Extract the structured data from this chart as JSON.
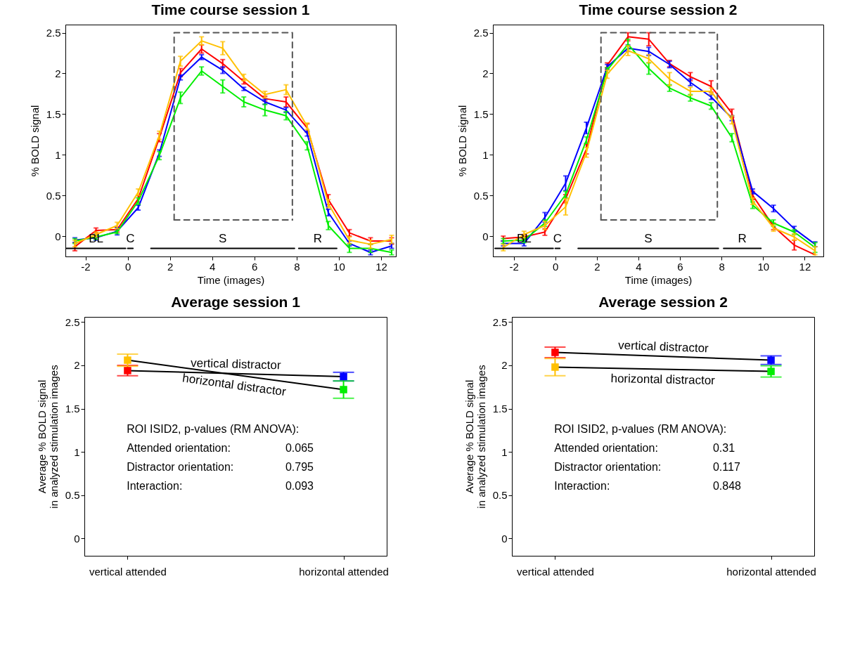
{
  "chart_data": [
    {
      "type": "line",
      "title": "Time course session 1",
      "xlabel": "Time (images)",
      "ylabel": "% BOLD signal",
      "x": [
        -2.5,
        -1.5,
        -0.5,
        0.5,
        1.5,
        2.5,
        3.5,
        4.5,
        5.5,
        6.5,
        7.5,
        8.5,
        9.5,
        10.5,
        11.5,
        12.5
      ],
      "xlim": [
        -2.95,
        12.7
      ],
      "xticks": [
        -2,
        0,
        2,
        4,
        6,
        8,
        10,
        12
      ],
      "ylim": [
        -0.25,
        2.6
      ],
      "yticks": [
        0,
        0.5,
        1,
        1.5,
        2,
        2.5
      ],
      "series": [
        {
          "color": "#ff0000",
          "values": [
            -0.13,
            0.07,
            0.08,
            0.46,
            1.21,
            2.01,
            2.3,
            2.12,
            1.9,
            1.69,
            1.65,
            1.33,
            0.45,
            0.04,
            -0.06,
            -0.06
          ],
          "errors": [
            0.05,
            0.03,
            0.03,
            0.04,
            0.05,
            0.05,
            0.05,
            0.05,
            0.03,
            0.03,
            0.06,
            0.05,
            0.06,
            0.04,
            0.04,
            0.04
          ]
        },
        {
          "color": "#0000ff",
          "values": [
            -0.05,
            -0.02,
            0.06,
            0.35,
            1.02,
            1.95,
            2.2,
            2.04,
            1.81,
            1.65,
            1.55,
            1.26,
            0.29,
            -0.09,
            -0.2,
            -0.12
          ],
          "errors": [
            0.03,
            0.03,
            0.045,
            0.03,
            0.04,
            0.03,
            0.03,
            0.04,
            0.02,
            0.03,
            0.03,
            0.03,
            0.04,
            0.03,
            0.03,
            0.03
          ]
        },
        {
          "color": "#00ee00",
          "values": [
            -0.06,
            -0.01,
            0.05,
            0.43,
            0.99,
            1.7,
            2.03,
            1.84,
            1.65,
            1.55,
            1.48,
            1.11,
            0.13,
            -0.15,
            -0.15,
            -0.2
          ],
          "errors": [
            0.03,
            0.03,
            0.02,
            0.04,
            0.05,
            0.07,
            0.05,
            0.08,
            0.06,
            0.07,
            0.05,
            0.05,
            0.05,
            0.05,
            0.05,
            0.03
          ]
        },
        {
          "color": "#ffc000",
          "values": [
            -0.09,
            0.02,
            0.13,
            0.54,
            1.24,
            2.15,
            2.4,
            2.31,
            1.95,
            1.74,
            1.8,
            1.35,
            0.4,
            -0.05,
            -0.1,
            -0.04
          ],
          "errors": [
            0.04,
            0.03,
            0.04,
            0.04,
            0.05,
            0.06,
            0.05,
            0.08,
            0.04,
            0.04,
            0.06,
            0.04,
            0.05,
            0.04,
            0.05,
            0.05
          ]
        },
        {
          "type": "line",
          "color": "#555555",
          "line_style": "dashed",
          "x": [
            2.2,
            2.2,
            7.8,
            7.8
          ],
          "values": [
            0.2,
            2.5,
            2.5,
            0.2
          ]
        },
        {
          "type": "line",
          "color": "#555555",
          "line_style": "dashed",
          "x": [
            2.2,
            7.8
          ],
          "values": [
            0.2,
            0.2
          ]
        },
        {
          "type": "line",
          "name": "BL",
          "color": "#000000",
          "x": [
            -2.9,
            -0.1
          ],
          "values": [
            -0.15,
            -0.15
          ]
        },
        {
          "type": "line",
          "name": "C",
          "color": "#000000",
          "x": [
            0,
            0.25
          ],
          "values": [
            -0.15,
            -0.15
          ]
        },
        {
          "type": "line",
          "name": "S",
          "color": "#000000",
          "x": [
            1.1,
            7.9
          ],
          "values": [
            -0.15,
            -0.15
          ]
        },
        {
          "type": "line",
          "name": "R",
          "color": "#000000",
          "x": [
            8.1,
            9.9
          ],
          "values": [
            -0.15,
            -0.15
          ]
        }
      ]
    },
    {
      "type": "line",
      "title": "Time course session 2",
      "xlabel": "Time (images)",
      "ylabel": "% BOLD signal",
      "x": [
        -2.5,
        -1.5,
        -0.5,
        0.5,
        1.5,
        2.5,
        3.5,
        4.5,
        5.5,
        6.5,
        7.5,
        8.5,
        9.5,
        10.5,
        11.5,
        12.5
      ],
      "xlim": [
        -3,
        12.9
      ],
      "xticks": [
        -2,
        0,
        2,
        4,
        6,
        8,
        10,
        12
      ],
      "ylim": [
        -0.25,
        2.6
      ],
      "yticks": [
        0,
        0.5,
        1,
        1.5,
        2,
        2.5
      ],
      "series": [
        {
          "color": "#ff0000",
          "values": [
            -0.03,
            -0.01,
            0.05,
            0.46,
            1.07,
            2.1,
            2.45,
            2.42,
            2.12,
            1.96,
            1.84,
            1.51,
            0.5,
            0.12,
            -0.11,
            -0.23
          ],
          "errors": [
            0.03,
            0.03,
            0.04,
            0.05,
            0.06,
            0.03,
            0.05,
            0.08,
            0.04,
            0.05,
            0.07,
            0.05,
            0.05,
            0.04,
            0.06,
            null
          ]
        },
        {
          "color": "#0000ff",
          "values": [
            -0.09,
            -0.09,
            0.23,
            0.65,
            1.33,
            2.08,
            2.31,
            2.27,
            2.11,
            1.89,
            1.71,
            1.45,
            0.55,
            0.34,
            0.09,
            -0.1
          ],
          "errors": [
            0.03,
            0.03,
            0.06,
            0.09,
            0.07,
            0.03,
            0.04,
            0.05,
            0.04,
            0.04,
            0.03,
            0.03,
            0.03,
            0.04,
            0.03,
            0.03
          ]
        },
        {
          "color": "#00ee00",
          "values": [
            -0.06,
            -0.05,
            0.16,
            0.51,
            1.18,
            2.04,
            2.36,
            2.06,
            1.82,
            1.7,
            1.6,
            1.21,
            0.38,
            0.16,
            0.05,
            -0.14
          ],
          "errors": [
            0.03,
            0.03,
            0.04,
            0.04,
            0.04,
            0.03,
            0.06,
            0.07,
            0.04,
            0.04,
            0.04,
            0.05,
            0.04,
            0.04,
            0.03,
            0.06
          ]
        },
        {
          "color": "#ffc000",
          "values": [
            -0.14,
            0.02,
            0.13,
            0.36,
            1.03,
            1.99,
            2.28,
            2.18,
            1.93,
            1.78,
            1.78,
            1.43,
            0.43,
            0.1,
            -0.01,
            -0.18
          ],
          "errors": [
            0.04,
            0.04,
            0.05,
            0.1,
            0.06,
            0.05,
            0.06,
            0.05,
            0.08,
            0.05,
            0.04,
            0.05,
            0.04,
            0.04,
            0.04,
            0.05
          ]
        },
        {
          "type": "line",
          "color": "#555555",
          "line_style": "dashed",
          "x": [
            2.2,
            2.2,
            7.8,
            7.8
          ],
          "values": [
            0.2,
            2.5,
            2.5,
            0.2
          ]
        },
        {
          "type": "line",
          "color": "#555555",
          "line_style": "dashed",
          "x": [
            2.2,
            7.8
          ],
          "values": [
            0.2,
            0.2
          ]
        },
        {
          "type": "line",
          "name": "BL",
          "color": "#000000",
          "x": [
            -2.9,
            -0.1
          ],
          "values": [
            -0.15,
            -0.15
          ]
        },
        {
          "type": "line",
          "name": "C",
          "color": "#000000",
          "x": [
            0,
            0.22
          ],
          "values": [
            -0.15,
            -0.15
          ]
        },
        {
          "type": "line",
          "name": "S",
          "color": "#000000",
          "x": [
            1.1,
            7.85
          ],
          "values": [
            -0.15,
            -0.15
          ]
        },
        {
          "type": "line",
          "name": "R",
          "color": "#000000",
          "x": [
            8.1,
            9.9
          ],
          "values": [
            -0.15,
            -0.15
          ]
        }
      ]
    },
    {
      "type": "line",
      "title": "Average session 1",
      "ylabel": "Average % BOLD signal\nin analyzed stimulation images",
      "categories": [
        "vertical attended",
        "horizontal attended"
      ],
      "ylim": [
        -0.2,
        2.56
      ],
      "yticks": [
        0,
        0.5,
        1,
        1.5,
        2,
        2.5
      ],
      "marker": "square",
      "series": [
        {
          "name": "vertical distractor",
          "color": "#000000",
          "colors": [
            "#ff0000",
            "#0000ff"
          ],
          "values": [
            1.94,
            1.87
          ],
          "errors": [
            0.06,
            0.05
          ]
        },
        {
          "name": "horizontal distractor",
          "color": "#000000",
          "colors": [
            "#ffc000",
            "#00ee00"
          ],
          "values": [
            2.06,
            1.72
          ],
          "errors": [
            0.07,
            0.1
          ]
        }
      ],
      "annotations": [
        "ROI ISID2, p-values (RM ANOVA):",
        "Attended orientation:",
        "0.065",
        "Distractor orientation:",
        "0.795",
        "Interaction:",
        "0.093"
      ]
    },
    {
      "type": "line",
      "title": "Average session 2",
      "ylabel": "Average % BOLD signal\nin analyzed stimulation images",
      "categories": [
        "vertical attended",
        "horizontal attended"
      ],
      "ylim": [
        -0.2,
        2.56
      ],
      "yticks": [
        0,
        0.5,
        1,
        1.5,
        2,
        2.5
      ],
      "marker": "square",
      "series": [
        {
          "name": "vertical distractor",
          "color": "#000000",
          "colors": [
            "#ff0000",
            "#0000ff"
          ],
          "values": [
            2.15,
            2.06
          ],
          "errors": [
            0.06,
            0.05
          ]
        },
        {
          "name": "horizontal distractor",
          "color": "#000000",
          "colors": [
            "#ffc000",
            "#00ee00"
          ],
          "values": [
            1.98,
            1.93
          ],
          "errors": [
            0.1,
            0.065
          ]
        }
      ],
      "annotations": [
        "ROI ISID2, p-values (RM ANOVA):",
        "Attended orientation:",
        "0.31",
        "Distractor orientation:",
        "0.117",
        "Interaction:",
        "0.848"
      ]
    }
  ]
}
